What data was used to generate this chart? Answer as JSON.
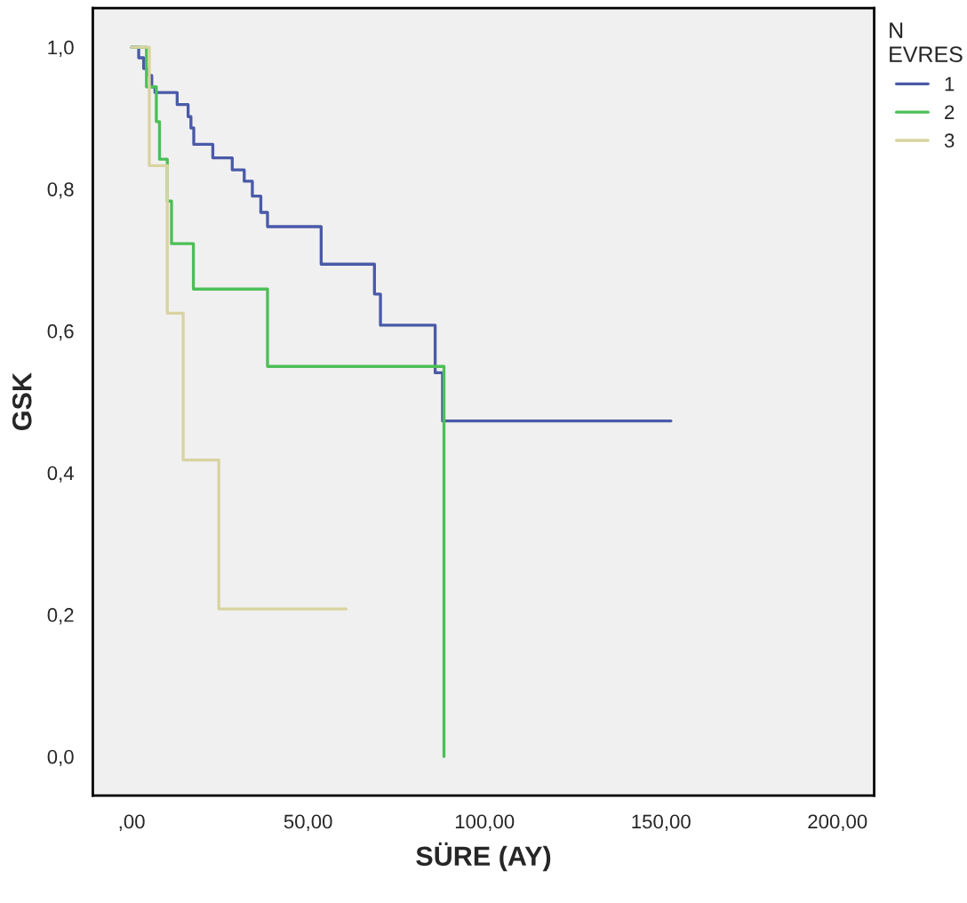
{
  "chart_data": {
    "type": "step",
    "xlabel": "SÜRE (AY)",
    "ylabel": "GSK",
    "legend_title": "N\nEVRES",
    "xlim": [
      -11,
      210.4
    ],
    "ylim": [
      -0.055,
      1.055
    ],
    "xticks": [
      {
        "value": 0,
        "label": ",00"
      },
      {
        "value": 50,
        "label": "50,00"
      },
      {
        "value": 100,
        "label": "100,00"
      },
      {
        "value": 150,
        "label": "150,00"
      },
      {
        "value": 200,
        "label": "200,00"
      }
    ],
    "yticks": [
      {
        "value": 0,
        "label": "0,0"
      },
      {
        "value": 0.2,
        "label": "0,2"
      },
      {
        "value": 0.4,
        "label": "0,4"
      },
      {
        "value": 0.6,
        "label": "0,6"
      },
      {
        "value": 0.8,
        "label": "0,8"
      },
      {
        "value": 1.0,
        "label": "1,0"
      }
    ],
    "grid": false,
    "legend": "right",
    "marker": "none",
    "line_style": "solid",
    "series": [
      {
        "name": "1",
        "color": "#4a5aa8",
        "x": [
          0,
          2.0,
          3.4,
          4.5,
          5.7,
          6.6,
          12.9,
          16.0,
          16.8,
          17.6,
          23.0,
          28.5,
          31.9,
          34.2,
          36.6,
          38.5,
          53.7,
          68.8,
          70.5,
          86.0,
          88.1,
          152.8
        ],
        "values": [
          1.0,
          0.985,
          0.97,
          0.96,
          0.944,
          0.936,
          0.919,
          0.902,
          0.886,
          0.863,
          0.844,
          0.827,
          0.811,
          0.79,
          0.767,
          0.747,
          0.694,
          0.652,
          0.608,
          0.541,
          0.473,
          0.473
        ]
      },
      {
        "name": "2",
        "color": "#4cbf57",
        "x": [
          0,
          4.2,
          7.0,
          7.9,
          10.1,
          11.3,
          17.5,
          38.5,
          88.5
        ],
        "values": [
          1.0,
          0.944,
          0.895,
          0.842,
          0.783,
          0.723,
          0.659,
          0.55,
          0.0
        ]
      },
      {
        "name": "3",
        "color": "#d8d3a0",
        "x": [
          0,
          5.0,
          10.1,
          14.6,
          24.7,
          60.8
        ],
        "values": [
          1.0,
          0.833,
          0.625,
          0.418,
          0.208,
          0.208
        ]
      }
    ]
  }
}
